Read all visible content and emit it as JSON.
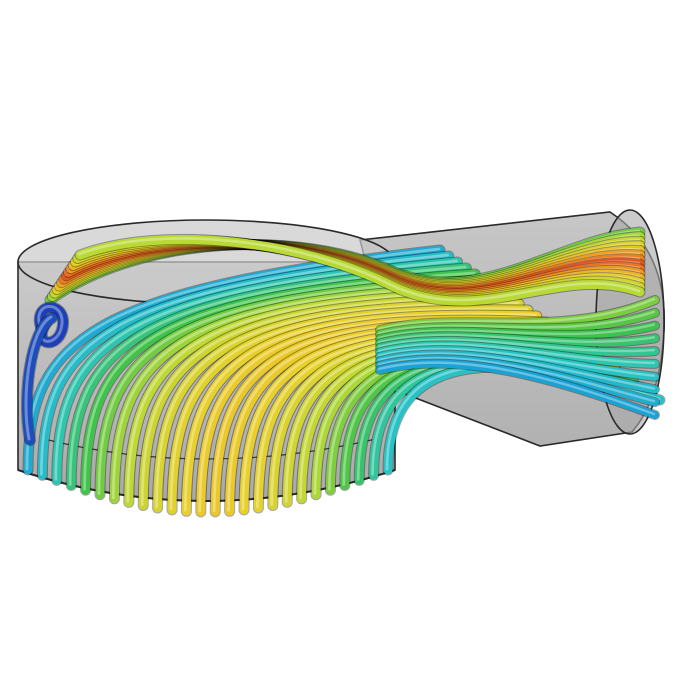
{
  "image": {
    "subject": "cfd-streamline-render",
    "background_color": "#ffffff",
    "housing_fill": "#b4b4b4",
    "housing_edge": "#2a2a2a",
    "colormap": [
      "#1d3fb8",
      "#1aa0d6",
      "#29c7c2",
      "#3cc24a",
      "#b9d934",
      "#e9d02a",
      "#f08a22",
      "#d8301c"
    ]
  }
}
